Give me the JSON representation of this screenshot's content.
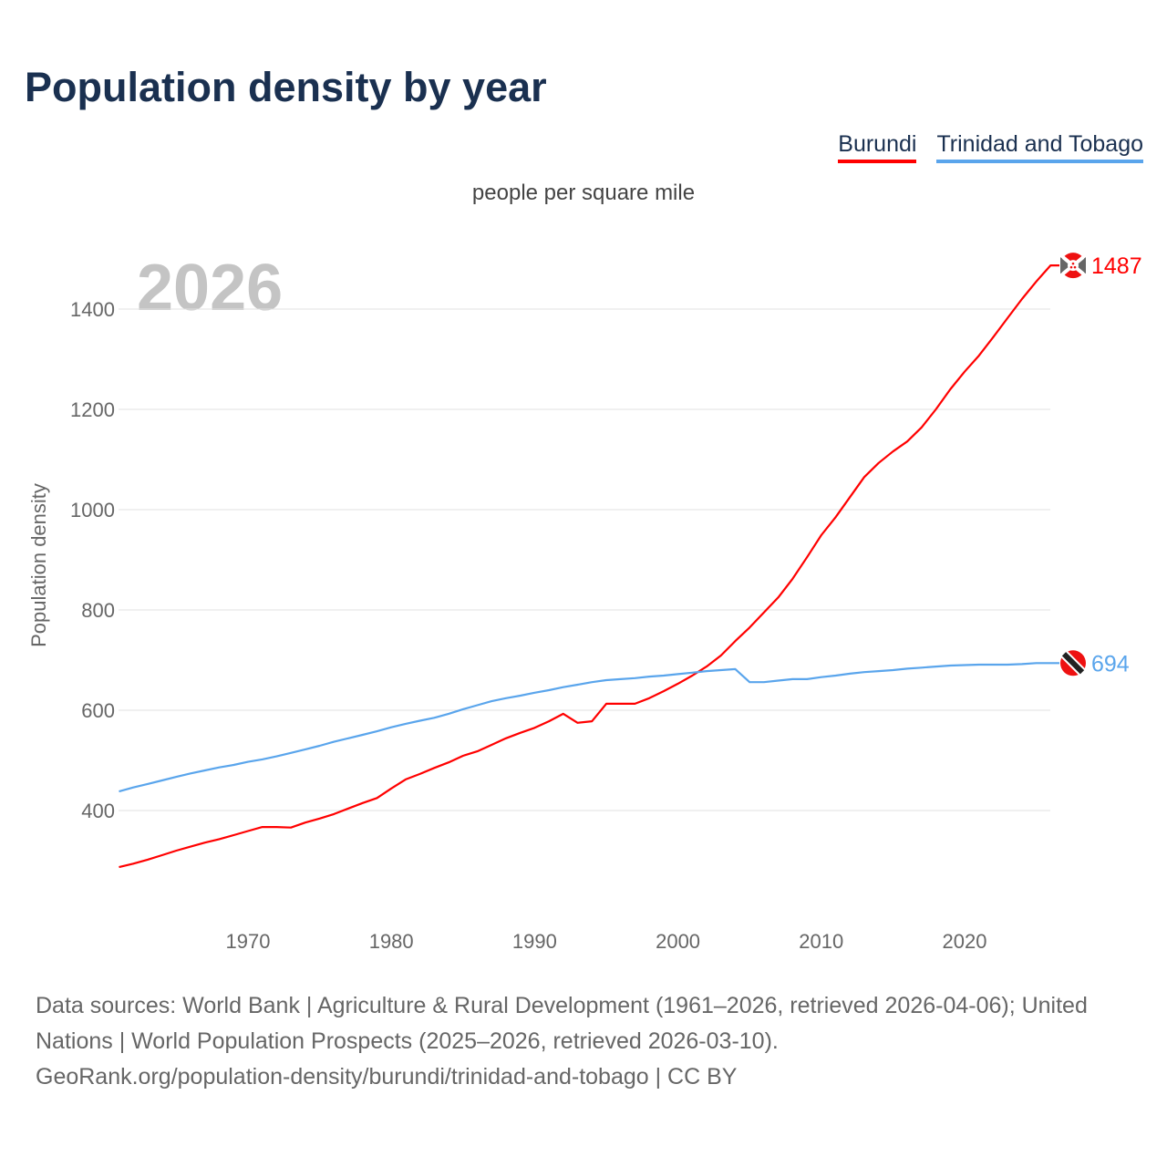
{
  "title": "Population density by year",
  "subtitle": "people per square mile",
  "legend": [
    "Burundi",
    "Trinidad and Tobago"
  ],
  "footer": {
    "line1": "Data sources: World Bank | Agriculture & Rural Development (1961–2026, retrieved 2026-04-06); United Nations | World Population Prospects (2025–2026, retrieved 2026-03-10).",
    "line2": "GeoRank.org/population-density/burundi/trinidad-and-tobago | CC BY"
  },
  "chart_data": {
    "type": "line",
    "title": "Population density by year",
    "xlabel": "",
    "ylabel": "Population density",
    "watermark_year": "2026",
    "xlim": [
      1961,
      2026
    ],
    "ylim": [
      250,
      1520
    ],
    "x_ticks": [
      1970,
      1980,
      1990,
      2000,
      2010,
      2020
    ],
    "y_ticks": [
      400,
      600,
      800,
      1000,
      1200,
      1400
    ],
    "x_start": 1961,
    "series": [
      {
        "name": "Burundi",
        "color": "#ff0000",
        "end_label": "1487",
        "values": [
          287,
          294,
          302,
          311,
          320,
          328,
          336,
          343,
          351,
          359,
          367,
          367,
          366,
          376,
          384,
          393,
          404,
          415,
          425,
          444,
          462,
          473,
          485,
          496,
          509,
          518,
          531,
          544,
          555,
          565,
          578,
          593,
          575,
          578,
          613,
          613,
          613,
          624,
          638,
          653,
          669,
          687,
          709,
          738,
          765,
          795,
          825,
          862,
          905,
          949,
          985,
          1025,
          1065,
          1093,
          1116,
          1136,
          1164,
          1200,
          1240,
          1275,
          1307,
          1344,
          1382,
          1420,
          1455,
          1487
        ]
      },
      {
        "name": "Trinidad and Tobago",
        "color": "#5aa5ec",
        "end_label": "694",
        "values": [
          438,
          446,
          453,
          460,
          467,
          474,
          480,
          486,
          491,
          497,
          502,
          508,
          515,
          522,
          529,
          537,
          544,
          551,
          558,
          566,
          573,
          579,
          585,
          593,
          602,
          610,
          618,
          624,
          629,
          635,
          640,
          646,
          651,
          656,
          660,
          662,
          664,
          667,
          669,
          672,
          675,
          678,
          680,
          682,
          656,
          656,
          659,
          662,
          662,
          666,
          669,
          673,
          676,
          678,
          680,
          683,
          685,
          687,
          689,
          690,
          691,
          691,
          691,
          692,
          694,
          694
        ]
      }
    ]
  }
}
